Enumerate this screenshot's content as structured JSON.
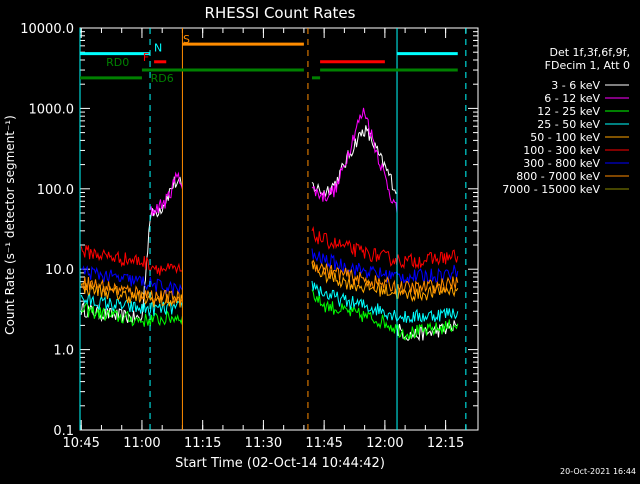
{
  "chart_data": {
    "type": "line",
    "title": "RHESSI Count Rates",
    "xlabel": "Start Time (02-Oct-14 10:44:42)",
    "ylabel": "Count Rate (s⁻¹ detector segment⁻¹)",
    "y_scale": "log",
    "ylim": [
      0.1,
      10000
    ],
    "xlim": [
      "10:44:42",
      "12:23:00"
    ],
    "x_ticks": [
      "10:45",
      "11:00",
      "11:15",
      "11:30",
      "11:45",
      "12:00",
      "12:15"
    ],
    "y_ticks": [
      "0.1",
      "1.0",
      "10.0",
      "100.0",
      "1000.0",
      "10000.0"
    ],
    "legend_header": [
      "Det 1f,3f,6f,9f,",
      "FDecim 1, Att 0"
    ],
    "legend_position": "right",
    "footer_date": "20-Oct-2021 16:44",
    "flag_labels": [
      "RD0",
      "RD6",
      "F",
      "N",
      "S"
    ],
    "series": [
      {
        "name": "3 - 6 keV",
        "color": "#ffffff",
        "segments": [
          {
            "x": [
              "10:45",
              "10:50",
              "10:55",
              "11:00",
              "11:02",
              "11:05",
              "11:08",
              "11:10"
            ],
            "y": [
              3.2,
              2.8,
              2.6,
              2.4,
              45,
              60,
              120,
              110
            ]
          },
          {
            "x": [
              "11:42",
              "11:45",
              "11:48",
              "11:50",
              "11:53",
              "11:55",
              "11:57",
              "11:59",
              "12:01",
              "12:03"
            ],
            "y": [
              110,
              90,
              120,
              200,
              400,
              550,
              380,
              230,
              150,
              90
            ]
          },
          {
            "x": [
              "12:03",
              "12:06",
              "12:10",
              "12:15",
              "12:18"
            ],
            "y": [
              1.8,
              1.5,
              1.6,
              1.8,
              2.0
            ]
          }
        ]
      },
      {
        "name": "6 - 12 keV",
        "color": "#ff00ff",
        "segments": [
          {
            "x": [
              "11:02",
              "11:04",
              "11:06",
              "11:08",
              "11:09",
              "11:10"
            ],
            "y": [
              50,
              60,
              70,
              120,
              170,
              100
            ]
          },
          {
            "x": [
              "11:42",
              "11:45",
              "11:48",
              "11:50",
              "11:53",
              "11:55",
              "11:57",
              "11:59",
              "12:01",
              "12:03"
            ],
            "y": [
              100,
              80,
              100,
              200,
              600,
              950,
              420,
              200,
              100,
              50
            ]
          }
        ]
      },
      {
        "name": "12 - 25 keV",
        "color": "#00ff00",
        "segments": [
          {
            "x": [
              "10:45",
              "10:50",
              "10:55",
              "11:00",
              "11:05",
              "11:10"
            ],
            "y": [
              3.2,
              2.8,
              2.5,
              2.3,
              2.4,
              2.6
            ]
          },
          {
            "x": [
              "11:42",
              "11:45",
              "11:50",
              "11:55",
              "12:00",
              "12:05",
              "12:10",
              "12:15",
              "12:18"
            ],
            "y": [
              5,
              3.6,
              3.0,
              2.6,
              2.2,
              1.6,
              1.7,
              1.9,
              2.1
            ]
          }
        ]
      },
      {
        "name": "25 - 50 keV",
        "color": "#00ffff",
        "segments": [
          {
            "x": [
              "10:45",
              "10:50",
              "10:55",
              "11:00",
              "11:05",
              "11:10"
            ],
            "y": [
              4.2,
              3.8,
              3.5,
              3.2,
              3.2,
              3.3
            ]
          },
          {
            "x": [
              "11:42",
              "11:45",
              "11:50",
              "11:55",
              "12:00",
              "12:05",
              "12:10",
              "12:15",
              "12:18"
            ],
            "y": [
              6.5,
              5,
              4,
              3.5,
              3.0,
              2.5,
              2.6,
              2.8,
              3.0
            ]
          }
        ]
      },
      {
        "name": "50 - 100 keV",
        "color": "#ffa500",
        "segments": [
          {
            "x": [
              "10:45",
              "10:50",
              "10:55",
              "11:00",
              "11:05",
              "11:10"
            ],
            "y": [
              6,
              5.4,
              4.8,
              4.3,
              4.0,
              4.1
            ]
          },
          {
            "x": [
              "11:42",
              "11:45",
              "11:50",
              "11:55",
              "12:00",
              "12:05",
              "12:10",
              "12:15",
              "12:18"
            ],
            "y": [
              11,
              8.5,
              7,
              6,
              5.5,
              4.8,
              5,
              5.5,
              5.8
            ]
          }
        ]
      },
      {
        "name": "100 - 300 keV",
        "color": "#ff0000",
        "segments": [
          {
            "x": [
              "10:45",
              "10:50",
              "10:55",
              "11:00",
              "11:05",
              "11:10"
            ],
            "y": [
              17,
              15,
              13.5,
              12.5,
              10,
              9.5
            ]
          },
          {
            "x": [
              "11:42",
              "11:45",
              "11:50",
              "11:55",
              "12:00",
              "12:05",
              "12:10",
              "12:15",
              "12:18"
            ],
            "y": [
              27,
              23,
              19,
              16,
              14,
              12.5,
              13,
              14,
              14.5
            ]
          }
        ]
      },
      {
        "name": "300 - 800 keV",
        "color": "#0000ff",
        "segments": [
          {
            "x": [
              "10:45",
              "10:50",
              "10:55",
              "11:00",
              "11:05",
              "11:10"
            ],
            "y": [
              9.5,
              8.5,
              7.5,
              7,
              6,
              5.5
            ]
          },
          {
            "x": [
              "11:42",
              "11:45",
              "11:50",
              "11:55",
              "12:00",
              "12:05",
              "12:10",
              "12:15",
              "12:18"
            ],
            "y": [
              15,
              13,
              11,
              9.5,
              8.5,
              8,
              8.2,
              8.8,
              9.5
            ]
          }
        ]
      },
      {
        "name": "800 - 7000 keV",
        "color": "#ff8c00",
        "segments": [
          {
            "x": [
              "10:45",
              "10:50",
              "10:55",
              "11:00",
              "11:05",
              "11:10"
            ],
            "y": [
              7,
              6.2,
              5.5,
              5,
              4.5,
              4.3
            ]
          },
          {
            "x": [
              "11:42",
              "11:45",
              "11:50",
              "11:55",
              "12:00",
              "12:05",
              "12:10",
              "12:15",
              "12:18"
            ],
            "y": [
              12,
              10,
              8.5,
              7.3,
              6.5,
              5.8,
              6,
              6.4,
              6.8
            ]
          }
        ]
      },
      {
        "name": "7000 - 15000 keV",
        "color": "#8b8b00",
        "segments": []
      }
    ],
    "vertical_markers": [
      {
        "x": "10:44:42",
        "color": "#00ffff",
        "style": "solid"
      },
      {
        "x": "11:02",
        "color": "#00ffff",
        "style": "dashed"
      },
      {
        "x": "11:10",
        "color": "#ff8c00",
        "style": "solid"
      },
      {
        "x": "11:41",
        "color": "#ff8c00",
        "style": "dashed"
      },
      {
        "x": "12:03",
        "color": "#00ffff",
        "style": "solid"
      },
      {
        "x": "12:20",
        "color": "#00ffff",
        "style": "dashed"
      }
    ],
    "flag_bars": [
      {
        "label": "S",
        "color": "#ff8c00",
        "level": 6300,
        "x0": "11:10",
        "x1": "11:40"
      },
      {
        "label": "N",
        "color": "#00ffff",
        "level": 4800,
        "x0": "10:44:42",
        "x1": "11:02"
      },
      {
        "label": "",
        "color": "#00ffff",
        "level": 4800,
        "x0": "12:03",
        "x1": "12:18"
      },
      {
        "label": "F",
        "color": "#ff0000",
        "level": 3800,
        "x0": "11:03",
        "x1": "11:06"
      },
      {
        "label": "",
        "color": "#ff0000",
        "level": 3800,
        "x0": "11:44",
        "x1": "12:00"
      },
      {
        "label": "RD0",
        "color": "#008000",
        "level": 3000,
        "x0": "11:00",
        "x1": "11:40"
      },
      {
        "label": "",
        "color": "#008000",
        "level": 3000,
        "x0": "11:44",
        "x1": "12:18"
      },
      {
        "label": "RD6",
        "color": "#008000",
        "level": 2400,
        "x0": "10:44:42",
        "x1": "11:00"
      },
      {
        "label": "",
        "color": "#008000",
        "level": 2400,
        "x0": "11:42",
        "x1": "11:44"
      }
    ]
  }
}
